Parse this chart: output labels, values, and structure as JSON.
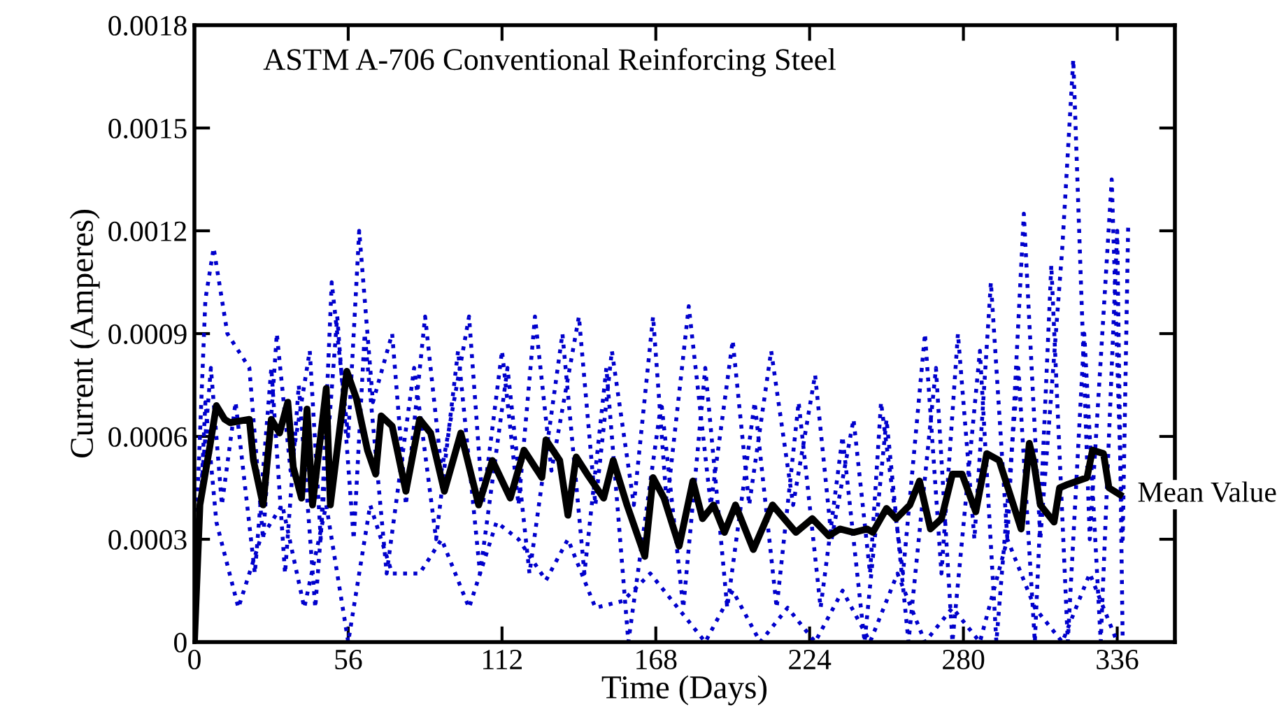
{
  "chart_data": {
    "type": "line",
    "title": "ASTM A-706 Conventional Reinforcing Steel",
    "xlabel": "Time (Days)",
    "ylabel": "Current (Amperes)",
    "xlim": [
      0,
      357
    ],
    "xticks": [
      0,
      56,
      112,
      168,
      224,
      280,
      336
    ],
    "ylim": [
      0,
      0.0018
    ],
    "yticks": [
      0,
      0.0003,
      0.0006,
      0.0009,
      0.0012,
      0.0015,
      0.0018
    ],
    "grid": false,
    "marker": "none",
    "annotations": [
      {
        "text": "Mean Value",
        "x": 337,
        "y": 0.00043
      }
    ],
    "series": [
      {
        "color": "#0000cc",
        "line_style": "dotted",
        "x": [
          0,
          4,
          7,
          12,
          20,
          25,
          30,
          35,
          42,
          46,
          50,
          56,
          60,
          65,
          72,
          77,
          84,
          90,
          100,
          105,
          112,
          118,
          124,
          130,
          140,
          146,
          152,
          160,
          167,
          172,
          180,
          188,
          196,
          202,
          210,
          218,
          226,
          232,
          240,
          246,
          250,
          258,
          266,
          272,
          278,
          284,
          290,
          296,
          302,
          308,
          316,
          320,
          326,
          334,
          338,
          340
        ],
        "values": [
          0.0002,
          0.001,
          0.00115,
          0.0009,
          0.0008,
          0.0003,
          0.0009,
          0.0005,
          0.00085,
          0.0003,
          0.00105,
          0.0006,
          0.0012,
          0.0007,
          0.0009,
          0.0004,
          0.00095,
          0.0005,
          0.00095,
          0.0004,
          0.00085,
          0.0004,
          0.00095,
          0.0005,
          0.00095,
          0.0004,
          0.00085,
          0.0004,
          0.00095,
          0.0004,
          0.00098,
          0.0004,
          0.00088,
          0.0004,
          0.00085,
          0.0004,
          0.00078,
          0.0003,
          0.00065,
          0.0002,
          0.0007,
          0.0002,
          0.0009,
          0.0002,
          0.0009,
          0.0003,
          0.00105,
          0.0003,
          0.00125,
          0.0003,
          0.00115,
          0.0017,
          0.0003,
          0.00135,
          0.0003,
          0.00122
        ]
      },
      {
        "color": "#0000cc",
        "line_style": "dotted",
        "x": [
          0,
          4,
          8,
          16,
          24,
          32,
          40,
          48,
          56,
          64,
          72,
          82,
          90,
          100,
          110,
          118,
          128,
          136,
          146,
          156,
          166,
          176,
          186,
          196,
          206,
          216,
          226,
          236,
          246,
          256,
          266,
          276,
          286,
          296,
          306,
          316,
          326,
          336
        ],
        "values": [
          0,
          0.0007,
          0.00035,
          0.0001,
          0.0003,
          0.0004,
          0.0001,
          0.0004,
          0,
          0.0004,
          0.0002,
          0.0002,
          0.0003,
          0.0001,
          0.00035,
          0.0003,
          0.00018,
          0.0003,
          0.0001,
          0.00012,
          0.0002,
          0.0001,
          0,
          0.00015,
          0,
          0.0001,
          0,
          0.00015,
          0,
          0.0002,
          0,
          0.0001,
          0,
          0.0003,
          0.0001,
          0,
          0.0002,
          0
        ]
      },
      {
        "color": "#0000cc",
        "line_style": "dotted",
        "x": [
          0,
          3,
          6,
          10,
          15,
          22,
          28,
          33,
          38,
          44,
          52,
          58,
          62,
          70,
          80,
          88,
          96,
          104,
          114,
          122,
          134,
          142,
          150,
          158,
          170,
          178,
          186,
          194,
          204,
          212,
          220,
          228,
          236,
          244,
          252,
          260,
          270,
          276,
          286,
          292,
          300,
          306,
          312,
          318,
          324,
          330,
          336,
          338
        ],
        "values": [
          0.0001,
          0.0005,
          0.0008,
          0.0004,
          0.0007,
          0.0002,
          0.0008,
          0.0002,
          0.00075,
          0.0001,
          0.00095,
          0.0003,
          0.0009,
          0.0002,
          0.0008,
          0.0003,
          0.00085,
          0.0002,
          0.0008,
          0.0002,
          0.0009,
          0.0002,
          0.0008,
          0,
          0.0007,
          0.0001,
          0.0008,
          0.0001,
          0.0007,
          0.0001,
          0.0007,
          0.0001,
          0.0006,
          0,
          0.00065,
          0,
          0.0008,
          0,
          0.00085,
          0,
          0.0008,
          0,
          0.0011,
          0,
          0.0009,
          0,
          0.0012,
          0
        ]
      },
      {
        "color": "#000000",
        "line_style": "solid",
        "x": [
          0,
          2,
          5.6,
          8,
          11,
          13,
          20,
          21.5,
          25,
          28,
          31,
          34,
          36,
          39,
          41,
          43,
          48,
          49.5,
          55.5,
          59,
          63,
          66,
          68,
          72,
          77,
          82,
          86,
          91,
          97,
          103.5,
          108.5,
          115,
          120,
          126.5,
          128,
          133,
          136,
          139,
          143,
          149,
          152.5,
          157.5,
          164,
          167,
          171,
          176.5,
          181.5,
          185,
          189,
          193,
          197,
          203.5,
          210.5,
          219,
          225,
          231,
          235,
          240,
          245,
          247,
          252,
          255.5,
          260.5,
          264,
          268,
          272,
          276,
          279.5,
          284.5,
          288.5,
          293,
          301,
          304,
          305.5,
          308,
          313,
          315,
          318,
          325,
          327,
          331,
          333,
          337
        ],
        "values": [
          0,
          0.0004,
          0.00057,
          0.00069,
          0.00065,
          0.00064,
          0.00065,
          0.00053,
          0.0004,
          0.00065,
          0.00061,
          0.0007,
          0.00051,
          0.00042,
          0.00068,
          0.0004,
          0.00074,
          0.0004,
          0.00079,
          0.00071,
          0.00056,
          0.00049,
          0.00066,
          0.00063,
          0.00044,
          0.00065,
          0.00061,
          0.00044,
          0.00061,
          0.0004,
          0.00053,
          0.00042,
          0.00056,
          0.00048,
          0.00059,
          0.00053,
          0.00037,
          0.00054,
          0.00049,
          0.00042,
          0.00053,
          0.0004,
          0.00025,
          0.00048,
          0.00042,
          0.00028,
          0.00047,
          0.00036,
          0.0004,
          0.00032,
          0.0004,
          0.00027,
          0.0004,
          0.00032,
          0.00036,
          0.00031,
          0.00033,
          0.00032,
          0.00033,
          0.00032,
          0.00039,
          0.00036,
          0.0004,
          0.00047,
          0.00033,
          0.00036,
          0.00049,
          0.00049,
          0.00038,
          0.00055,
          0.00053,
          0.00033,
          0.00058,
          0.00053,
          0.0004,
          0.00035,
          0.00045,
          0.00046,
          0.00048,
          0.00056,
          0.00055,
          0.00045,
          0.00043
        ]
      }
    ]
  }
}
